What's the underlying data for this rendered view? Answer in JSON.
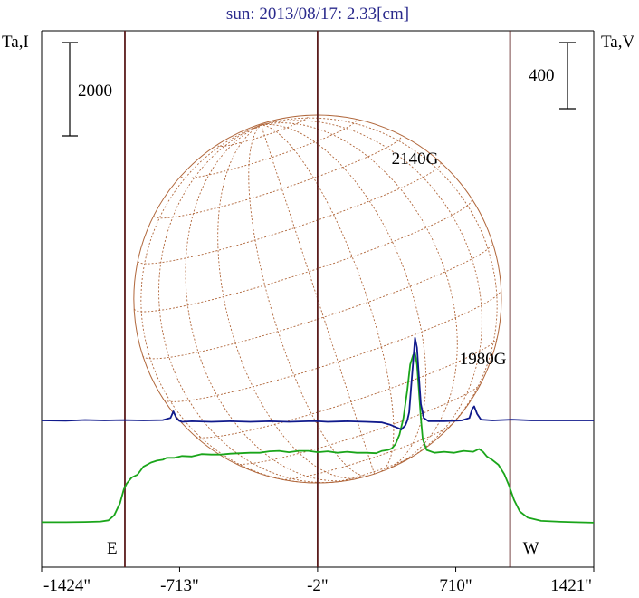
{
  "chart_data": {
    "type": "line",
    "title": "sun: 2013/08/17: 2.33[cm]",
    "left_axis_label": "Ta,I",
    "right_axis_label": "Ta,V",
    "left_scale_bar": {
      "label": "2000",
      "value": 2000
    },
    "right_scale_bar": {
      "label": "400",
      "value": 400
    },
    "x_tick_labels": [
      "-1424\"",
      "-713\"",
      "-2\"",
      "710\"",
      "1421\""
    ],
    "x_tick_values": [
      -1424,
      -713,
      -2,
      710,
      1421
    ],
    "xlim": [
      -1424,
      1421
    ],
    "limb_markers": [
      {
        "label": "E",
        "x": -995
      },
      {
        "label": "W",
        "x": 990
      }
    ],
    "center_marker": {
      "x": -2
    },
    "solar_disk_radius_arcsec": 947,
    "annotations": [
      {
        "label": "2140G",
        "x": 500
      },
      {
        "label": "1980G",
        "x": 850
      }
    ],
    "colors": {
      "intensity": "#1aa51a",
      "polarization": "#101a8c",
      "disk": "#b0663a",
      "markers": "#5a1c1c",
      "title": "#2a2a8c"
    },
    "series": [
      {
        "key": "intensity",
        "x": [
          -1424,
          -1300,
          -1200,
          -1120,
          -1080,
          -1050,
          -1020,
          -1000,
          -985,
          -960,
          -930,
          -900,
          -860,
          -830,
          -800,
          -780,
          -740,
          -700,
          -650,
          -600,
          -550,
          -500,
          -450,
          -400,
          -350,
          -300,
          -250,
          -200,
          -150,
          -100,
          -50,
          0,
          50,
          100,
          150,
          200,
          250,
          300,
          330,
          360,
          380,
          400,
          420,
          440,
          460,
          475,
          490,
          500,
          510,
          520,
          530,
          540,
          560,
          600,
          650,
          700,
          750,
          800,
          830,
          850,
          870,
          900,
          930,
          960,
          985,
          1010,
          1040,
          1080,
          1150,
          1250,
          1330,
          1421
        ],
        "values": [
          70,
          70,
          75,
          85,
          110,
          220,
          480,
          780,
          900,
          1030,
          1090,
          1260,
          1350,
          1390,
          1410,
          1450,
          1450,
          1490,
          1480,
          1530,
          1520,
          1520,
          1540,
          1550,
          1560,
          1560,
          1590,
          1600,
          1570,
          1600,
          1600,
          1570,
          1590,
          1560,
          1580,
          1560,
          1560,
          1550,
          1600,
          1620,
          1650,
          1750,
          1950,
          2300,
          2900,
          3450,
          3650,
          3700,
          3450,
          2900,
          2300,
          1850,
          1620,
          1560,
          1580,
          1560,
          1600,
          1580,
          1640,
          1580,
          1480,
          1400,
          1300,
          1100,
          850,
          550,
          300,
          170,
          100,
          80,
          70,
          60
        ]
      },
      {
        "key": "polarization",
        "x": [
          -1424,
          -1300,
          -1200,
          -1100,
          -1000,
          -900,
          -800,
          -760,
          -745,
          -730,
          -715,
          -700,
          -650,
          -550,
          -450,
          -350,
          -250,
          -150,
          -50,
          0,
          50,
          150,
          250,
          330,
          370,
          400,
          430,
          450,
          460,
          470,
          480,
          490,
          500,
          510,
          520,
          530,
          545,
          570,
          650,
          740,
          780,
          795,
          805,
          820,
          840,
          900,
          1000,
          1100,
          1200,
          1300,
          1421
        ],
        "values": [
          0,
          -2,
          3,
          0,
          2,
          0,
          2,
          15,
          55,
          15,
          -2,
          -8,
          -5,
          -8,
          -5,
          -8,
          -5,
          -8,
          -5,
          -5,
          -8,
          -5,
          -8,
          -12,
          -25,
          -40,
          -55,
          -30,
          0,
          50,
          200,
          350,
          500,
          440,
          270,
          100,
          15,
          -5,
          -5,
          0,
          15,
          70,
          85,
          40,
          5,
          0,
          5,
          0,
          0,
          0,
          0
        ]
      }
    ]
  }
}
